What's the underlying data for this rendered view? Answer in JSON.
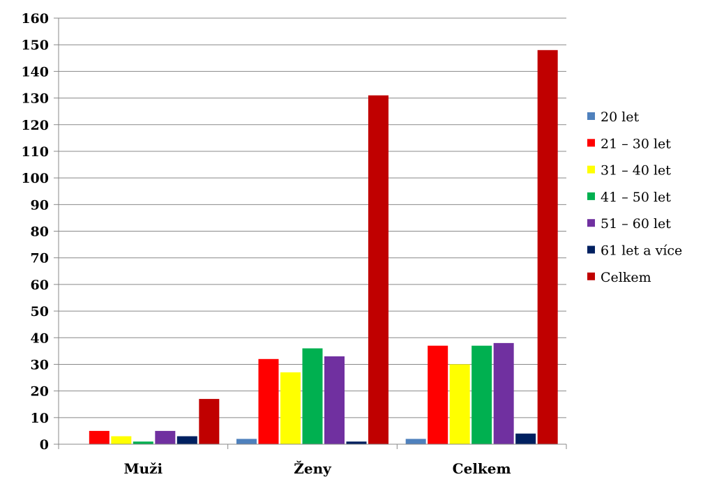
{
  "chart_data": {
    "type": "bar",
    "categories": [
      "Muži",
      "Ženy",
      "Celkem"
    ],
    "ylim": [
      0,
      160
    ],
    "yticks": [
      0,
      10,
      20,
      30,
      40,
      50,
      60,
      70,
      80,
      90,
      100,
      110,
      120,
      130,
      140,
      150,
      160
    ],
    "grid": true,
    "legend_position": "right",
    "series": [
      {
        "name": "20 let",
        "color": "#4F81BD",
        "values": [
          0,
          2,
          2
        ]
      },
      {
        "name": "21 – 30 let",
        "color": "#FF0000",
        "values": [
          5,
          32,
          37
        ]
      },
      {
        "name": "31 – 40 let",
        "color": "#FFFF00",
        "values": [
          3,
          27,
          30
        ]
      },
      {
        "name": "41 – 50 let",
        "color": "#00B050",
        "values": [
          1,
          36,
          37
        ]
      },
      {
        "name": "51 – 60 let",
        "color": "#7030A0",
        "values": [
          5,
          33,
          38
        ]
      },
      {
        "name": "61 let a více",
        "color": "#002060",
        "values": [
          3,
          1,
          4
        ]
      },
      {
        "name": "Celkem",
        "color": "#C00000",
        "values": [
          17,
          131,
          148
        ]
      }
    ]
  }
}
